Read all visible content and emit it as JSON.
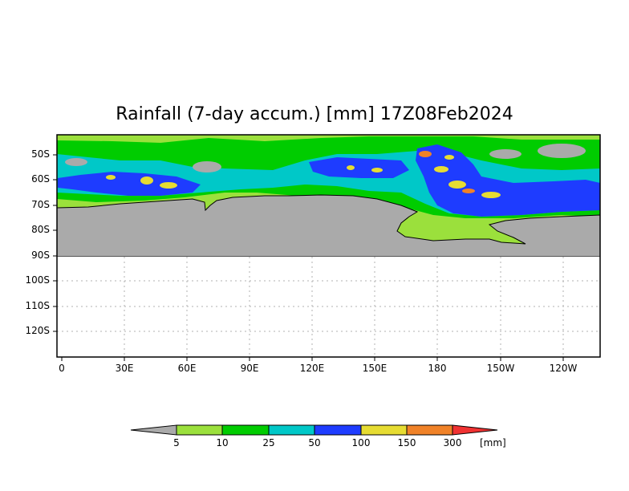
{
  "map": {
    "title": "Rainfall (7-day accum.) [mm] 17Z08Feb2024",
    "y_ticks": [
      "50S",
      "60S",
      "70S",
      "80S",
      "90S",
      "100S",
      "110S",
      "120S"
    ],
    "x_ticks": [
      "0",
      "30E",
      "60E",
      "90E",
      "120E",
      "150E",
      "180",
      "150W",
      "120W"
    ],
    "colors": {
      "land": "#aaaaaa",
      "below_5": "#aaaaaa",
      "c5_10": "#9be03c",
      "c10_25": "#00cc00",
      "c25_50": "#00c8c8",
      "c50_100": "#1e3cff",
      "c100_150": "#e6dc32",
      "c150_300": "#f08228",
      "above_300": "#f03232"
    }
  },
  "colorbar": {
    "labels": [
      "5",
      "10",
      "25",
      "50",
      "100",
      "150",
      "300"
    ],
    "unit": "[mm]"
  }
}
